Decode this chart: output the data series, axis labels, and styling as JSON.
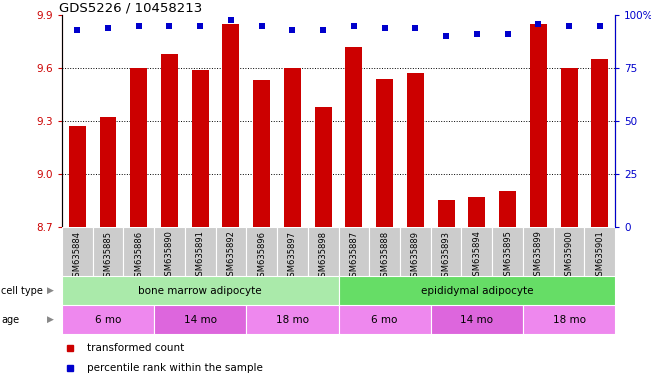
{
  "title": "GDS5226 / 10458213",
  "samples": [
    "GSM635884",
    "GSM635885",
    "GSM635886",
    "GSM635890",
    "GSM635891",
    "GSM635892",
    "GSM635896",
    "GSM635897",
    "GSM635898",
    "GSM635887",
    "GSM635888",
    "GSM635889",
    "GSM635893",
    "GSM635894",
    "GSM635895",
    "GSM635899",
    "GSM635900",
    "GSM635901"
  ],
  "bar_values": [
    9.27,
    9.32,
    9.6,
    9.68,
    9.59,
    9.85,
    9.53,
    9.6,
    9.38,
    9.72,
    9.54,
    9.57,
    8.85,
    8.87,
    8.9,
    9.85,
    9.6,
    9.65
  ],
  "percentile_values": [
    93,
    94,
    95,
    95,
    95,
    98,
    95,
    93,
    93,
    95,
    94,
    94,
    90,
    91,
    91,
    96,
    95,
    95
  ],
  "ymin": 8.7,
  "ymax": 9.9,
  "yticks": [
    8.7,
    9.0,
    9.3,
    9.6,
    9.9
  ],
  "right_yticks": [
    0,
    25,
    50,
    75,
    100
  ],
  "bar_color": "#cc0000",
  "dot_color": "#0000cc",
  "cell_type_labels": [
    "bone marrow adipocyte",
    "epididymal adipocyte"
  ],
  "cell_type_starts": [
    0,
    9
  ],
  "cell_type_ends": [
    9,
    18
  ],
  "cell_type_colors": [
    "#aaeaaa",
    "#66dd66"
  ],
  "age_labels": [
    "6 mo",
    "14 mo",
    "18 mo",
    "6 mo",
    "14 mo",
    "18 mo"
  ],
  "age_starts": [
    0,
    3,
    6,
    9,
    12,
    15
  ],
  "age_ends": [
    3,
    6,
    9,
    12,
    15,
    18
  ],
  "age_colors": [
    "#ee88ee",
    "#dd66dd",
    "#ee88ee",
    "#ee88ee",
    "#dd66dd",
    "#ee88ee"
  ],
  "sample_box_color": "#cccccc",
  "legend_labels": [
    "transformed count",
    "percentile rank within the sample"
  ],
  "legend_colors": [
    "#cc0000",
    "#0000cc"
  ]
}
